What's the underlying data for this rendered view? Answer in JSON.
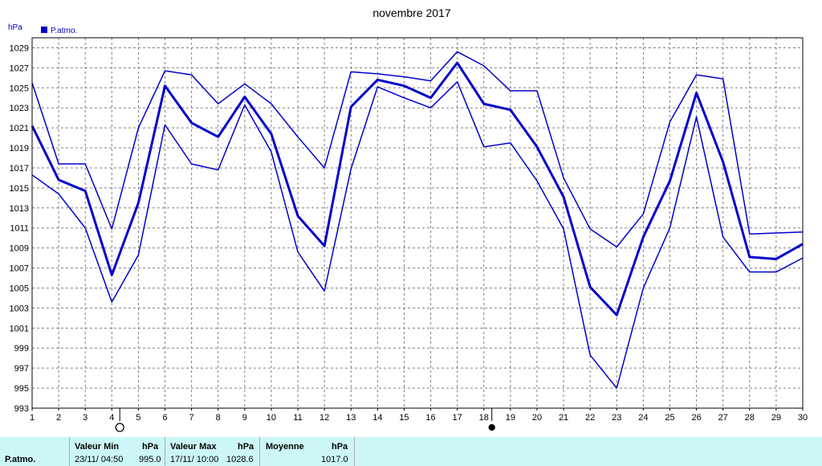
{
  "chart_data": {
    "type": "line",
    "title": "novembre 2017",
    "ylabel": "hPa",
    "ylim": [
      993,
      1030
    ],
    "yticks": [
      993,
      995,
      997,
      999,
      1001,
      1003,
      1005,
      1007,
      1009,
      1011,
      1013,
      1015,
      1017,
      1019,
      1021,
      1023,
      1025,
      1027,
      1029
    ],
    "x": [
      1,
      2,
      3,
      4,
      5,
      6,
      7,
      8,
      9,
      10,
      11,
      12,
      13,
      14,
      15,
      16,
      17,
      18,
      19,
      20,
      21,
      22,
      23,
      24,
      25,
      26,
      27,
      28,
      29,
      30
    ],
    "legend": {
      "label": "P.atmo.",
      "position": "top-left"
    },
    "grid": true,
    "colors": {
      "series": "#0000cc",
      "grid": "#808080",
      "legend_box": "#0000cc"
    },
    "series": [
      {
        "name": "P.atmo.",
        "role": "max",
        "values": [
          1025.5,
          1017.4,
          1017.4,
          1010.9,
          1021.0,
          1026.7,
          1026.3,
          1023.4,
          1025.4,
          1023.4,
          1020.1,
          1017.0,
          1026.6,
          1026.4,
          1026.1,
          1025.7,
          1028.6,
          1027.2,
          1024.7,
          1024.7,
          1016.0,
          1010.9,
          1009.1,
          1012.4,
          1021.6,
          1026.3,
          1025.9,
          1010.4,
          1010.5,
          1010.6
        ]
      },
      {
        "name": "P.atmo.",
        "role": "mean",
        "values": [
          1021.2,
          1015.8,
          1014.7,
          1006.3,
          1013.5,
          1025.2,
          1021.5,
          1020.1,
          1024.1,
          1020.4,
          1012.2,
          1009.2,
          1023.1,
          1025.8,
          1025.2,
          1024.0,
          1027.5,
          1023.4,
          1022.8,
          1019.1,
          1014.1,
          1005.1,
          1002.3,
          1010.1,
          1015.7,
          1024.5,
          1017.6,
          1008.1,
          1007.9,
          1009.4
        ]
      },
      {
        "name": "P.atmo.",
        "role": "min",
        "values": [
          1016.3,
          1014.4,
          1011.0,
          1003.6,
          1008.3,
          1021.3,
          1017.4,
          1016.8,
          1023.3,
          1018.6,
          1008.6,
          1004.7,
          1016.9,
          1025.1,
          1024.0,
          1023.0,
          1025.6,
          1019.1,
          1019.5,
          1015.7,
          1010.9,
          998.3,
          995.0,
          1005.0,
          1011.0,
          1022.1,
          1010.1,
          1006.6,
          1006.6,
          1008.0
        ]
      }
    ],
    "moon_markers": [
      {
        "day": 4,
        "symbol": "full-moon-icon"
      },
      {
        "day": 18,
        "symbol": "new-moon-icon"
      }
    ]
  },
  "footer": {
    "series_label": "P.atmo.",
    "min_header": "Valeur Min",
    "min_unit": "hPa",
    "min_date": "23/11/  04:50",
    "min_value": "995.0",
    "max_header": "Valeur Max",
    "max_unit": "hPa",
    "max_date": "17/11/  10:00",
    "max_value": "1028.6",
    "mean_header": "Moyenne",
    "mean_unit": "hPa",
    "mean_value": "1017.0"
  }
}
